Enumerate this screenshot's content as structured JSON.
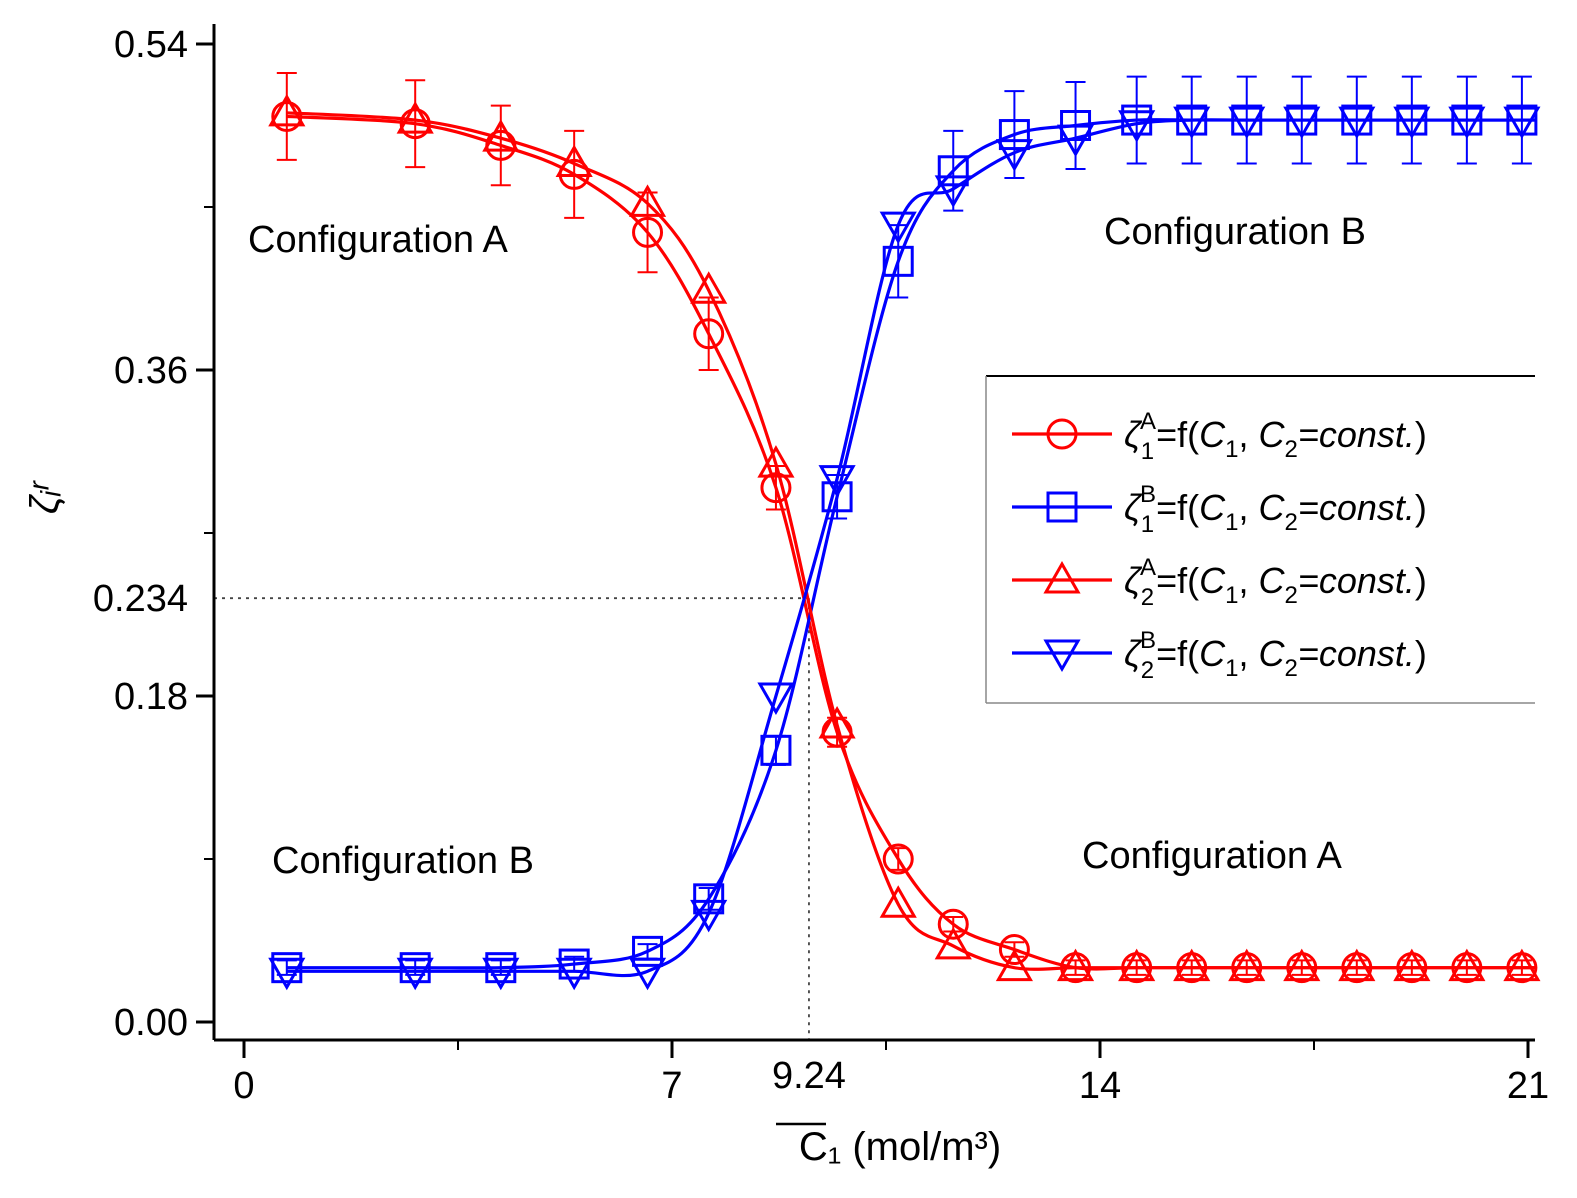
{
  "chart_data": {
    "type": "line",
    "xlabel": "C₁ (mol/m³)",
    "ylabel": "ζᵢʳ",
    "xlim": [
      -1.8,
      21.2
    ],
    "ylim": [
      -0.01,
      0.54
    ],
    "x_ticks": [
      "0",
      "7",
      "14",
      "21"
    ],
    "y_ticks": [
      "0.00",
      "0.18",
      "0.36",
      "0.54"
    ],
    "y_extra_tick": "0.234",
    "x_extra_tick": "9.24",
    "crossing": {
      "x": 9.24,
      "y": 0.234
    },
    "error_bars": true,
    "x": [
      0.7,
      2.8,
      4.2,
      5.4,
      6.6,
      7.6,
      8.7,
      9.7,
      10.7,
      11.6,
      12.6,
      13.6,
      14.6,
      15.5,
      16.4,
      17.3,
      18.2,
      19.1,
      20.0,
      20.9
    ],
    "series": [
      {
        "name": "ζ1A",
        "color": "#ff0000",
        "marker": "circle",
        "values": [
          0.5,
          0.496,
          0.484,
          0.468,
          0.436,
          0.38,
          0.295,
          0.16,
          0.09,
          0.054,
          0.04,
          0.03,
          0.03,
          0.03,
          0.03,
          0.03,
          0.03,
          0.03,
          0.03,
          0.03
        ],
        "errors": [
          0.024,
          0.024,
          0.022,
          0.024,
          0.022,
          0.02,
          0.012,
          0.008,
          0.006,
          0.004,
          0.004,
          0.004,
          0.004,
          0.004,
          0.004,
          0.004,
          0.004,
          0.004,
          0.004,
          0.004
        ]
      },
      {
        "name": "ζ1B",
        "color": "#0000ff",
        "marker": "square",
        "values": [
          0.03,
          0.03,
          0.03,
          0.032,
          0.039,
          0.068,
          0.15,
          0.29,
          0.42,
          0.47,
          0.49,
          0.495,
          0.498,
          0.498,
          0.498,
          0.498,
          0.498,
          0.498,
          0.498,
          0.498
        ],
        "errors": [
          0.004,
          0.004,
          0.004,
          0.004,
          0.004,
          0.006,
          0.008,
          0.012,
          0.02,
          0.022,
          0.024,
          0.024,
          0.024,
          0.024,
          0.024,
          0.024,
          0.024,
          0.024,
          0.024,
          0.024
        ]
      },
      {
        "name": "ζ2A",
        "color": "#ff0000",
        "marker": "triangle-up",
        "values": [
          0.502,
          0.498,
          0.488,
          0.474,
          0.452,
          0.404,
          0.308,
          0.164,
          0.065,
          0.042,
          0.03,
          0.03,
          0.03,
          0.03,
          0.03,
          0.03,
          0.03,
          0.03,
          0.03,
          0.03
        ],
        "errors": [
          0,
          0,
          0,
          0,
          0,
          0,
          0,
          0,
          0,
          0,
          0,
          0,
          0,
          0,
          0,
          0,
          0,
          0,
          0,
          0
        ]
      },
      {
        "name": "ζ2B",
        "color": "#0000ff",
        "marker": "triangle-down",
        "values": [
          0.028,
          0.028,
          0.028,
          0.028,
          0.028,
          0.06,
          0.18,
          0.3,
          0.44,
          0.46,
          0.48,
          0.488,
          0.496,
          0.498,
          0.498,
          0.498,
          0.498,
          0.498,
          0.498,
          0.498
        ],
        "errors": [
          0,
          0,
          0,
          0,
          0,
          0,
          0,
          0,
          0,
          0,
          0,
          0,
          0,
          0,
          0,
          0,
          0,
          0,
          0,
          0
        ]
      }
    ],
    "annotations": {
      "config_a_top": "Configuration A",
      "config_b_top": "Configuration B",
      "config_b_bottom": "Configuration B",
      "config_a_bottom": "Configuration A"
    },
    "legend": {
      "position": "right",
      "formula_tail": "=f(",
      "var1": "C",
      "var1_sub": "1",
      "sep": ", ",
      "var2": "C",
      "var2_sub": "2",
      "const_text": "=const.",
      "close": ")",
      "entries": [
        {
          "greek": "ζ",
          "sub": "1",
          "sup": "A",
          "color": "#ff0000",
          "marker": "circle"
        },
        {
          "greek": "ζ",
          "sub": "1",
          "sup": "B",
          "color": "#0000ff",
          "marker": "square"
        },
        {
          "greek": "ζ",
          "sub": "2",
          "sup": "A",
          "color": "#ff0000",
          "marker": "triangle-up"
        },
        {
          "greek": "ζ",
          "sub": "2",
          "sup": "B",
          "color": "#0000ff",
          "marker": "triangle-down"
        }
      ]
    }
  }
}
